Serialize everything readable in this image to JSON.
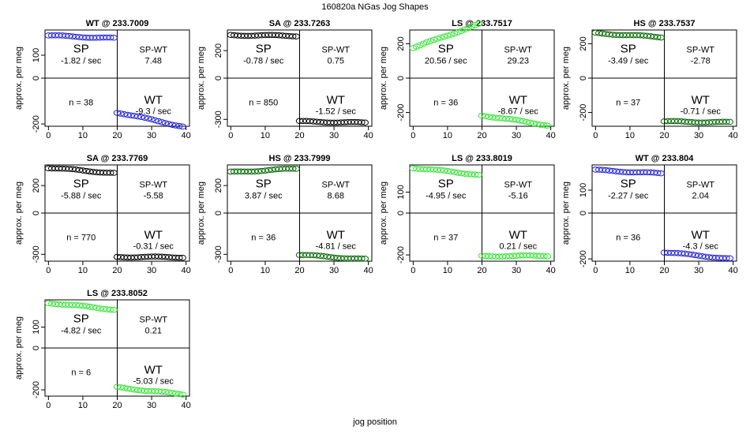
{
  "figure": {
    "title": "160820a   NGas Jog Shapes",
    "xlabel": "jog position",
    "ylabel": "approx. per meg"
  },
  "colors": {
    "WT": "#2020dd",
    "SA": "#000000",
    "LS": "#33e633",
    "HS": "#006600"
  },
  "chart_data": [
    {
      "type": "scatter",
      "title": "WT @ 233.7009",
      "group": "WT",
      "ylim": [
        -210,
        210
      ],
      "yticks": [
        -200,
        0,
        100
      ],
      "xticks": [
        0,
        10,
        20,
        30,
        40
      ],
      "sp_mean": 180,
      "sp_slope": -1.82,
      "wt_mean": -180,
      "wt_slope": -9.3,
      "sp_label": "SP",
      "sp_rate": "-1.82 / sec",
      "spwt_label": "SP-WT",
      "spwt_value": "7.48",
      "n_label": "n = 38",
      "wt_label": "WT",
      "wt_rate": "-9.3 / sec"
    },
    {
      "type": "scatter",
      "title": "SA @ 233.7263",
      "group": "SA",
      "ylim": [
        -350,
        350
      ],
      "yticks": [
        -300,
        0,
        200
      ],
      "xticks": [
        0,
        10,
        20,
        30,
        40
      ],
      "sp_mean": 310,
      "sp_slope": -0.78,
      "wt_mean": -320,
      "wt_slope": -1.52,
      "sp_label": "SP",
      "sp_rate": "-0.78 / sec",
      "spwt_label": "SP-WT",
      "spwt_value": "0.75",
      "n_label": "n = 850",
      "wt_label": "WT",
      "wt_rate": "-1.52 / sec"
    },
    {
      "type": "scatter",
      "title": "LS @ 233.7517",
      "group": "LS",
      "ylim": [
        -280,
        280
      ],
      "yticks": [
        -200,
        0,
        200
      ],
      "xticks": [
        0,
        10,
        20,
        30,
        40
      ],
      "sp_mean": 245,
      "sp_slope": 20.56,
      "wt_mean": -245,
      "wt_slope": -8.67,
      "sp_label": "SP",
      "sp_rate": "20.56 / sec",
      "spwt_label": "SP-WT",
      "spwt_value": "29.23",
      "n_label": "n = 36",
      "wt_label": "WT",
      "wt_rate": "-8.67 / sec"
    },
    {
      "type": "scatter",
      "title": "HS @ 233.7537",
      "group": "HS",
      "ylim": [
        -280,
        280
      ],
      "yticks": [
        -200,
        0,
        200
      ],
      "xticks": [
        0,
        10,
        20,
        30,
        40
      ],
      "sp_mean": 250,
      "sp_slope": -3.49,
      "wt_mean": -255,
      "wt_slope": -0.71,
      "sp_label": "SP",
      "sp_rate": "-3.49 / sec",
      "spwt_label": "SP-WT",
      "spwt_value": "-2.78",
      "n_label": "n = 37",
      "wt_label": "WT",
      "wt_rate": "-0.71 / sec"
    },
    {
      "type": "scatter",
      "title": "SA @ 233.7769",
      "group": "SA",
      "ylim": [
        -350,
        350
      ],
      "yticks": [
        -300,
        0,
        200
      ],
      "xticks": [
        0,
        10,
        20,
        30,
        40
      ],
      "sp_mean": 310,
      "sp_slope": -5.88,
      "wt_mean": -320,
      "wt_slope": -0.31,
      "sp_label": "SP",
      "sp_rate": "-5.88 / sec",
      "spwt_label": "SP-WT",
      "spwt_value": "-5.58",
      "n_label": "n = 770",
      "wt_label": "WT",
      "wt_rate": "-0.31 / sec"
    },
    {
      "type": "scatter",
      "title": "HS @ 233.7999",
      "group": "HS",
      "ylim": [
        -350,
        350
      ],
      "yticks": [
        -300,
        0,
        200
      ],
      "xticks": [
        0,
        10,
        20,
        30,
        40
      ],
      "sp_mean": 310,
      "sp_slope": 3.87,
      "wt_mean": -320,
      "wt_slope": -4.81,
      "sp_label": "SP",
      "sp_rate": "3.87 / sec",
      "spwt_label": "SP-WT",
      "spwt_value": "8.68",
      "n_label": "n = 36",
      "wt_label": "WT",
      "wt_rate": "-4.81 / sec"
    },
    {
      "type": "scatter",
      "title": "LS @ 233.8019",
      "group": "LS",
      "ylim": [
        -230,
        230
      ],
      "yticks": [
        -200,
        0,
        100
      ],
      "xticks": [
        0,
        10,
        20,
        30,
        40
      ],
      "sp_mean": 200,
      "sp_slope": -4.95,
      "wt_mean": -205,
      "wt_slope": 0.21,
      "sp_label": "SP",
      "sp_rate": "-4.95 / sec",
      "spwt_label": "SP-WT",
      "spwt_value": "-5.16",
      "n_label": "n = 37",
      "wt_label": "WT",
      "wt_rate": "0.21 / sec"
    },
    {
      "type": "scatter",
      "title": "WT @ 233.804",
      "group": "WT",
      "ylim": [
        -210,
        210
      ],
      "yticks": [
        -200,
        0,
        100
      ],
      "xticks": [
        0,
        10,
        20,
        30,
        40
      ],
      "sp_mean": 180,
      "sp_slope": -2.27,
      "wt_mean": -185,
      "wt_slope": -4.3,
      "sp_label": "SP",
      "sp_rate": "-2.27 / sec",
      "spwt_label": "SP-WT",
      "spwt_value": "2.04",
      "n_label": "n = 36",
      "wt_label": "WT",
      "wt_rate": "-4.3 / sec"
    },
    {
      "type": "scatter",
      "title": "LS @ 233.8052",
      "group": "LS",
      "ylim": [
        -230,
        230
      ],
      "yticks": [
        -200,
        0,
        100
      ],
      "xticks": [
        0,
        10,
        20,
        30,
        40
      ],
      "sp_mean": 200,
      "sp_slope": -4.82,
      "wt_mean": -205,
      "wt_slope": -5.03,
      "sp_label": "SP",
      "sp_rate": "-4.82 / sec",
      "spwt_label": "SP-WT",
      "spwt_value": "0.21",
      "n_label": "n = 6",
      "wt_label": "WT",
      "wt_rate": "-5.03 / sec"
    }
  ]
}
